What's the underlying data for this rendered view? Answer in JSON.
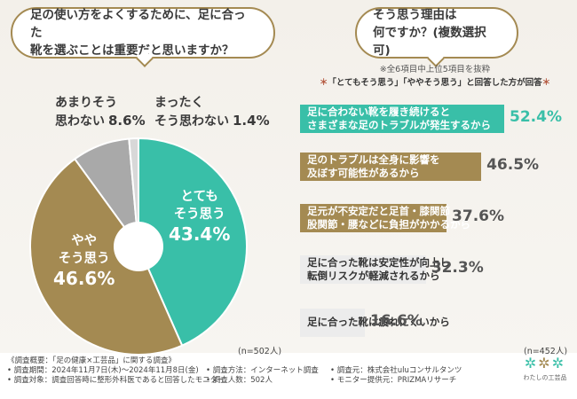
{
  "question_left": {
    "line1": "足の使い方をよくするために、足に合った",
    "line2": "靴を選ぶことは重要だと思いますか？"
  },
  "question_right": {
    "line1": "そう思う理由は",
    "line2": "何ですか？(複数選択可)"
  },
  "pie_labels": {
    "rarely_line1": "あまりそう",
    "rarely_line2": "思わない",
    "rarely_pct": "8.6%",
    "never_line1": "まったく",
    "never_line2": "そう思わない",
    "never_pct": "1.4%",
    "very_line1": "とても",
    "very_line2": "そう思う",
    "very_pct": "43.4%",
    "some_line1": "やや",
    "some_line2": "そう思う",
    "some_pct": "46.6%"
  },
  "n_left": "(n=502人)",
  "n_right": "(n=452人)",
  "notes": {
    "top6": "※全6項目中上位5項目を抜粋",
    "answered": "「とてもそう思う」「ややそう思う」と回答した方が回答",
    "star": "＊"
  },
  "reasons": [
    {
      "line1": "足に合わない靴を履き続けると",
      "line2": "さまざまな足のトラブルが発生するから",
      "pct_label": "52.4%"
    },
    {
      "line1": "足のトラブルは全身に影響を",
      "line2": "及ぼす可能性があるから",
      "pct_label": "46.5%"
    },
    {
      "line1": "足元が不安定だと足首・膝関節・",
      "line2": "股関節・腰などに負担がかかるから",
      "pct_label": "37.6%"
    },
    {
      "line1": "足に合った靴は安定性が向上し",
      "line2": "転倒リスクが軽減されるから",
      "pct_label": "32.3%"
    },
    {
      "line1": "足に合った靴は疲れにくいから",
      "line2": "",
      "pct_label": "16.6%"
    }
  ],
  "footer": {
    "title": "《調査概要：「足の健康×工芸品」に関する調査》",
    "period": "• 調査期間：2024年11月7日(木)〜2024年11月8日(金)",
    "method": "• 調査方法：インターネット調査",
    "source": "• 調査元：株式会社uluコンサルタンツ",
    "target": "• 調査対象：調査回答時に整形外科医であると回答したモニター",
    "count": "• 調査人数：502人",
    "monitor": "• モニター提供元：PRIZMAリサーチ"
  },
  "logo_text": "わたしの工芸品",
  "colors": {
    "teal": "#39bfa8",
    "brown": "#a48a52",
    "gray": "#a9a9a9",
    "light_gray": "#ececec"
  },
  "chart_data": [
    {
      "type": "pie",
      "categories": [
        "とてもそう思う",
        "ややそう思う",
        "あまりそう思わない",
        "まったくそう思わない"
      ],
      "values": [
        43.4,
        46.6,
        8.6,
        1.4
      ],
      "colors": [
        "#39bfa8",
        "#a48a52",
        "#a9a9a9",
        "#d8d8d8"
      ],
      "donut": true
    },
    {
      "type": "bar",
      "orientation": "horizontal",
      "categories": [
        "足に合わない靴を履き続けるとさまざまな足のトラブルが発生するから",
        "足のトラブルは全身に影響を及ぼす可能性があるから",
        "足元が不安定だと足首・膝関節・股関節・腰などに負担がかかるから",
        "足に合った靴は安定性が向上し転倒リスクが軽減されるから",
        "足に合った靴は疲れにくいから"
      ],
      "values": [
        52.4,
        46.5,
        37.6,
        32.3,
        16.6
      ],
      "colors": [
        "#39bfa8",
        "#a48a52",
        "#a48a52",
        "#ececec",
        "#ececec"
      ]
    }
  ]
}
